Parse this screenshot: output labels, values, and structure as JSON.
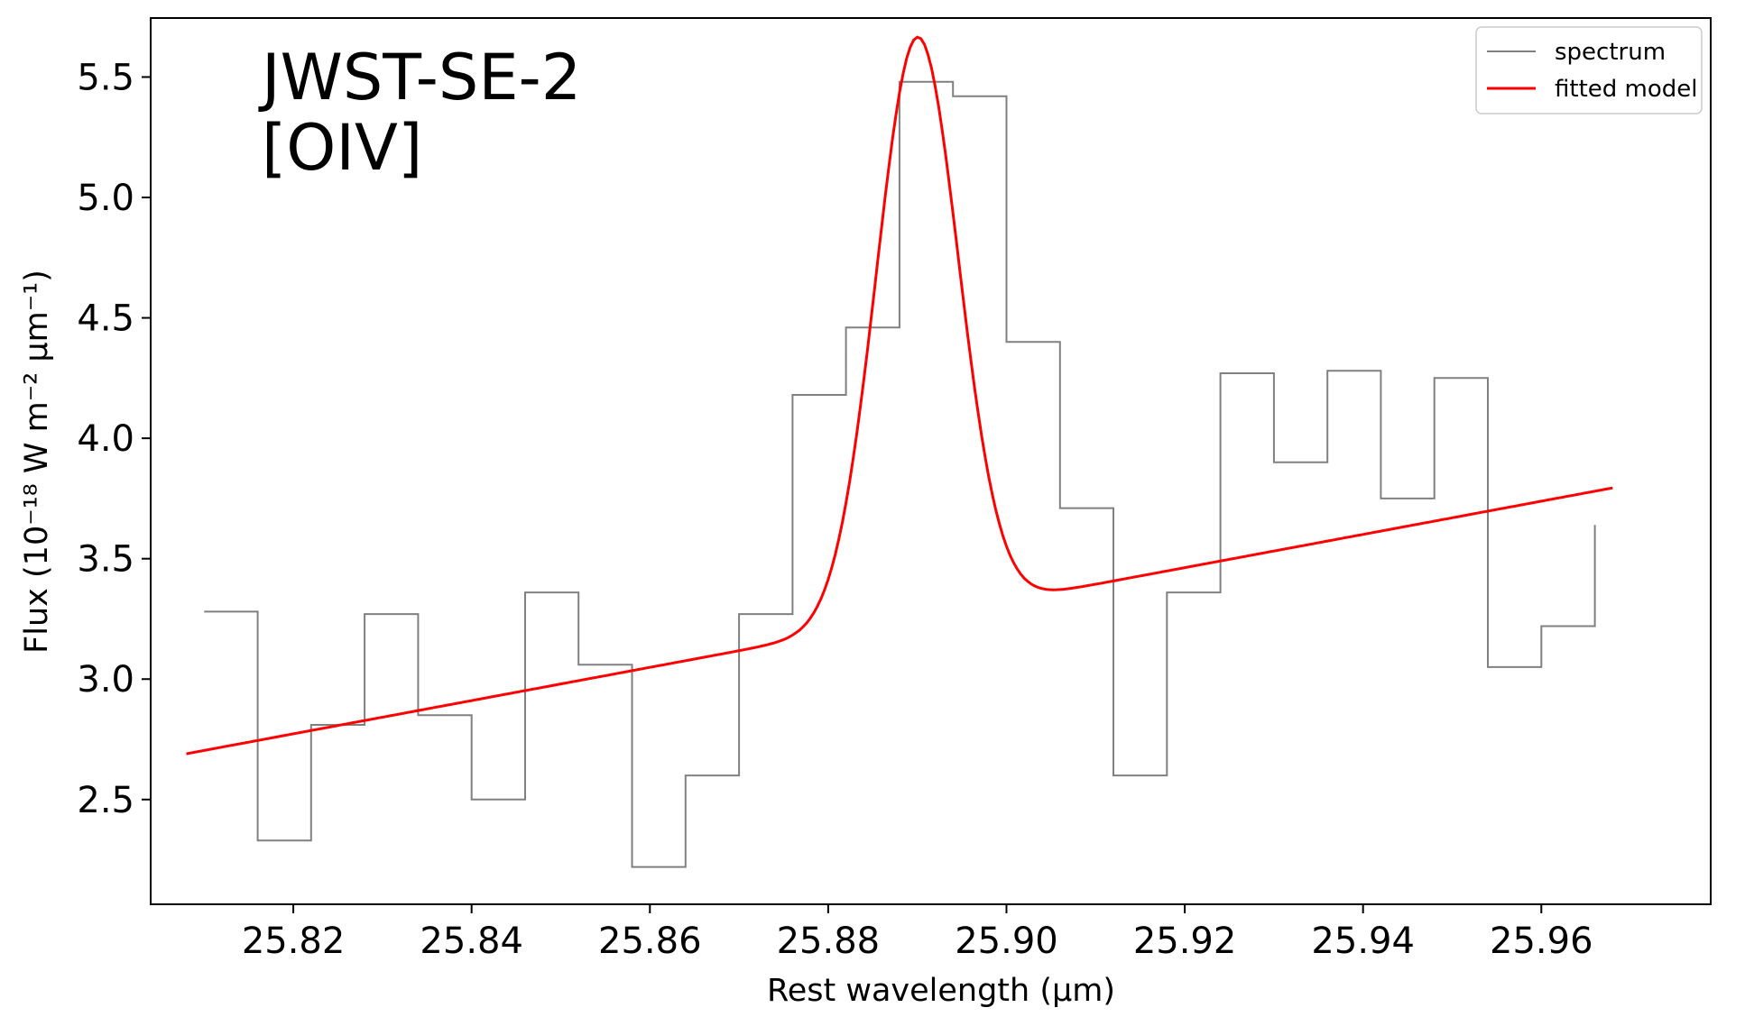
{
  "chart_data": {
    "type": "line",
    "annotation": [
      "JWST-SE-2",
      "[OIV]"
    ],
    "xlabel": "Rest wavelength (μm)",
    "ylabel": "Flux (10⁻¹⁸ W m⁻² μm⁻¹)",
    "xlim": [
      25.804,
      25.979
    ],
    "ylim": [
      2.065,
      5.745
    ],
    "xticks": [
      25.82,
      25.84,
      25.86,
      25.88,
      25.9,
      25.92,
      25.94,
      25.96
    ],
    "xtick_labels": [
      "25.82",
      "25.84",
      "25.86",
      "25.88",
      "25.90",
      "25.92",
      "25.94",
      "25.96"
    ],
    "yticks": [
      2.5,
      3.0,
      3.5,
      4.0,
      4.5,
      5.0,
      5.5
    ],
    "ytick_labels": [
      "2.5",
      "3.0",
      "3.5",
      "4.0",
      "4.5",
      "5.0",
      "5.5"
    ],
    "grid": false,
    "legend": {
      "position": "top-right",
      "entries": [
        "spectrum",
        "fitted model"
      ]
    },
    "series": [
      {
        "name": "spectrum",
        "style": "step",
        "color": "#808080",
        "x": [
          25.81,
          25.816,
          25.822,
          25.828,
          25.834,
          25.84,
          25.846,
          25.852,
          25.858,
          25.864,
          25.87,
          25.876,
          25.882,
          25.888,
          25.894,
          25.9,
          25.906,
          25.912,
          25.918,
          25.924,
          25.93,
          25.936,
          25.942,
          25.948,
          25.954,
          25.96,
          25.966
        ],
        "y": [
          3.28,
          2.33,
          2.81,
          3.27,
          2.85,
          2.5,
          3.36,
          3.06,
          2.22,
          2.6,
          3.27,
          4.18,
          4.46,
          5.48,
          5.42,
          4.4,
          3.71,
          2.6,
          3.36,
          4.27,
          3.9,
          4.28,
          3.75,
          4.25,
          3.05,
          3.22,
          3.64
        ],
        "x_end": 25.966
      },
      {
        "name": "fitted model",
        "style": "curve",
        "color": "#ff0000",
        "x_range": [
          25.808,
          25.968
        ],
        "baseline": {
          "intercept_at_25.808": 2.69,
          "slope_per_um": 6.9
        },
        "gaussian": {
          "center": 25.89,
          "amplitude": 2.41,
          "sigma": 0.0046
        }
      }
    ]
  }
}
